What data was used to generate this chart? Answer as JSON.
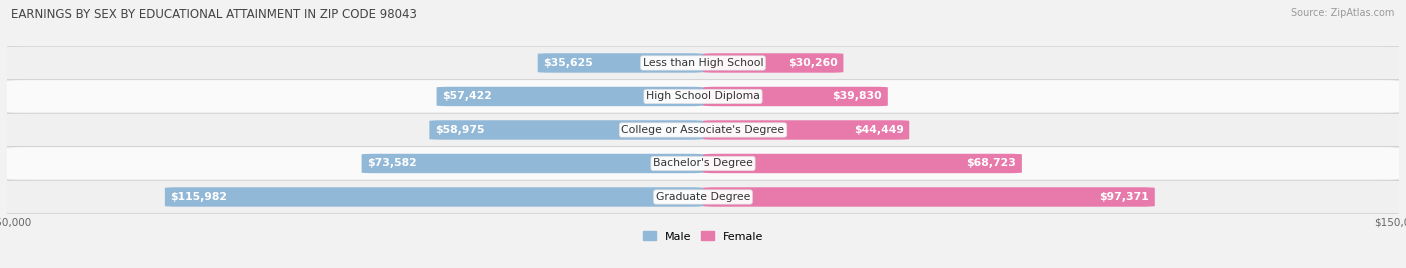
{
  "title": "EARNINGS BY SEX BY EDUCATIONAL ATTAINMENT IN ZIP CODE 98043",
  "source": "Source: ZipAtlas.com",
  "categories": [
    "Less than High School",
    "High School Diploma",
    "College or Associate's Degree",
    "Bachelor's Degree",
    "Graduate Degree"
  ],
  "male_values": [
    35625,
    57422,
    58975,
    73582,
    115982
  ],
  "female_values": [
    30260,
    39830,
    44449,
    68723,
    97371
  ],
  "male_color": "#92b8d8",
  "female_color": "#e87aab",
  "male_color_strong": "#6aaad4",
  "female_color_strong": "#e85a96",
  "label_color_inside": "#ffffff",
  "label_color_outside": "#555555",
  "max_value": 150000,
  "bar_height": 0.58,
  "background_color": "#f2f2f2",
  "row_colors_odd": "#f0f0f0",
  "row_colors_even": "#fafafa",
  "label_fontsize": 7.8,
  "title_fontsize": 8.5,
  "category_fontsize": 7.8,
  "source_fontsize": 7.0
}
